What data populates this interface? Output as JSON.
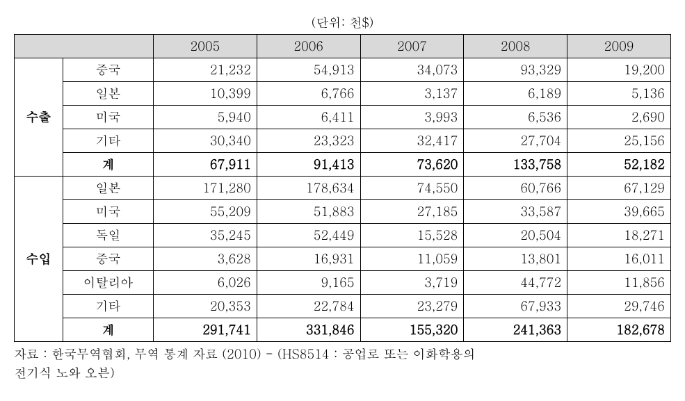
{
  "table": {
    "unit_label": "(단위: 천$)",
    "type": "table",
    "background_color": "#ffffff",
    "header_bg": "#d9d9d9",
    "border_color": "#000000",
    "text_color": "#000000",
    "title_fontsize": 18,
    "cell_fontsize": 18,
    "years": [
      "2005",
      "2006",
      "2007",
      "2008",
      "2009"
    ],
    "groups": [
      {
        "label": "수출",
        "rows": [
          {
            "country": "중국",
            "values": [
              "21,232",
              "54,913",
              "34,073",
              "93,329",
              "19,200"
            ]
          },
          {
            "country": "일본",
            "values": [
              "10,399",
              "6,766",
              "3,137",
              "6,189",
              "5,136"
            ]
          },
          {
            "country": "미국",
            "values": [
              "5,940",
              "6,411",
              "3,993",
              "6,536",
              "2,690"
            ]
          },
          {
            "country": "기타",
            "values": [
              "30,340",
              "23,323",
              "32,417",
              "27,704",
              "25,156"
            ]
          }
        ],
        "total": {
          "label": "계",
          "values": [
            "67,911",
            "91,413",
            "73,620",
            "133,758",
            "52,182"
          ]
        }
      },
      {
        "label": "수입",
        "rows": [
          {
            "country": "일본",
            "values": [
              "171,280",
              "178,634",
              "74,550",
              "60,766",
              "67,129"
            ]
          },
          {
            "country": "미국",
            "values": [
              "55,209",
              "51,883",
              "27,185",
              "33,587",
              "39,665"
            ]
          },
          {
            "country": "독일",
            "values": [
              "35,245",
              "52,449",
              "15,528",
              "20,504",
              "18,271"
            ]
          },
          {
            "country": "중국",
            "values": [
              "3,628",
              "16,931",
              "11,059",
              "13,801",
              "16,011"
            ]
          },
          {
            "country": "이탈리아",
            "values": [
              "6,026",
              "9,165",
              "3,719",
              "44,772",
              "11,856"
            ]
          },
          {
            "country": "기타",
            "values": [
              "20,353",
              "22,784",
              "23,279",
              "67,933",
              "29,746"
            ]
          }
        ],
        "total": {
          "label": "계",
          "values": [
            "291,741",
            "331,846",
            "155,320",
            "241,363",
            "182,678"
          ]
        }
      }
    ],
    "source_note_line1": "자료 : 한국무역협회, 무역 통계 자료 (2010) - (HS8514 : 공업로 또는 이화학용의",
    "source_note_line2": "전기식 노와 오븐)"
  }
}
